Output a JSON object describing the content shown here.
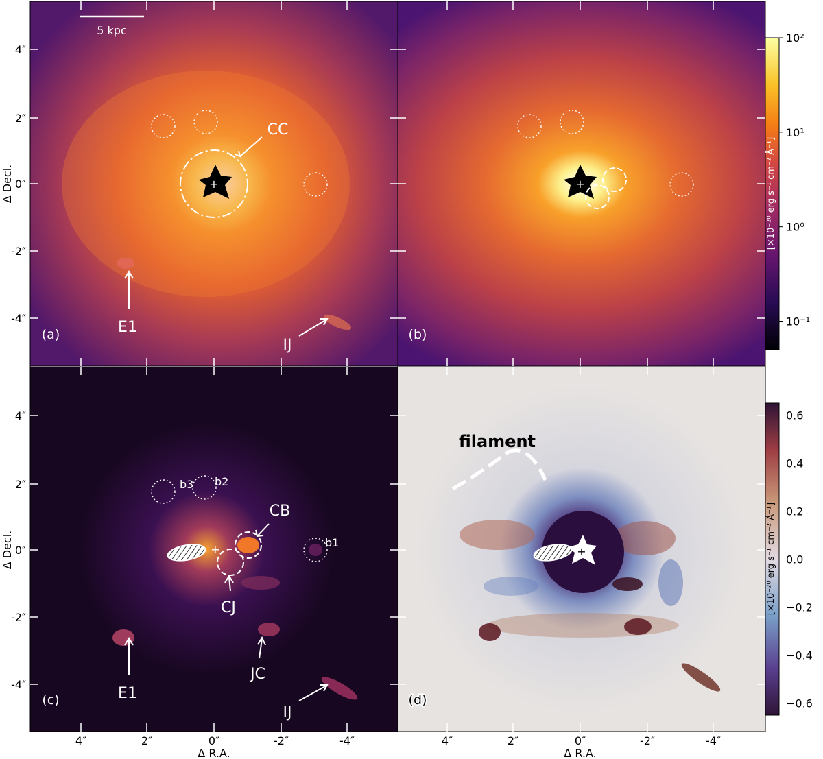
{
  "figure": {
    "axis_label_y": "Δ Decl.",
    "axis_label_x": "Δ R.A.",
    "x_ticks": [
      "4″",
      "2″",
      "0″",
      "-2″",
      "-4″"
    ],
    "y_ticks": [
      "4″",
      "2″",
      "0″",
      "-2″",
      "-4″"
    ],
    "scale_bar_label": "5 kpc",
    "panels": [
      {
        "id": "a",
        "label": "(a)",
        "annotations": [
          "CC",
          "E1",
          "IJ"
        ]
      },
      {
        "id": "b",
        "label": "(b)",
        "annotations": []
      },
      {
        "id": "c",
        "label": "(c)",
        "annotations": [
          "CB",
          "CJ",
          "E1",
          "JC",
          "IJ"
        ],
        "apertures": [
          "b1",
          "b2",
          "b3"
        ]
      },
      {
        "id": "d",
        "label": "(d)",
        "annotations": [
          "filament"
        ]
      }
    ],
    "colorbar_top": {
      "label": "[×10⁻²⁰ erg s⁻¹ cm⁻² Å⁻¹]",
      "scale": "log",
      "range": [
        0.05,
        100
      ],
      "ticks": [
        {
          "value": 100,
          "label": "10²"
        },
        {
          "value": 10,
          "label": "10¹"
        },
        {
          "value": 1,
          "label": "10⁰"
        },
        {
          "value": 0.1,
          "label": "10⁻¹"
        }
      ],
      "colormap": "inferno"
    },
    "colorbar_bottom": {
      "label": "[×10⁻²⁰ erg s⁻¹ cm⁻² Å⁻¹]",
      "scale": "linear",
      "range": [
        -0.65,
        0.65
      ],
      "ticks": [
        {
          "value": 0.6,
          "label": "0.6"
        },
        {
          "value": 0.4,
          "label": "0.4"
        },
        {
          "value": 0.2,
          "label": "0.2"
        },
        {
          "value": 0.0,
          "label": "0.0"
        },
        {
          "value": -0.2,
          "label": "−0.2"
        },
        {
          "value": -0.4,
          "label": "−0.4"
        },
        {
          "value": -0.6,
          "label": "−0.6"
        }
      ],
      "colormap": "twilight-diverging"
    }
  }
}
